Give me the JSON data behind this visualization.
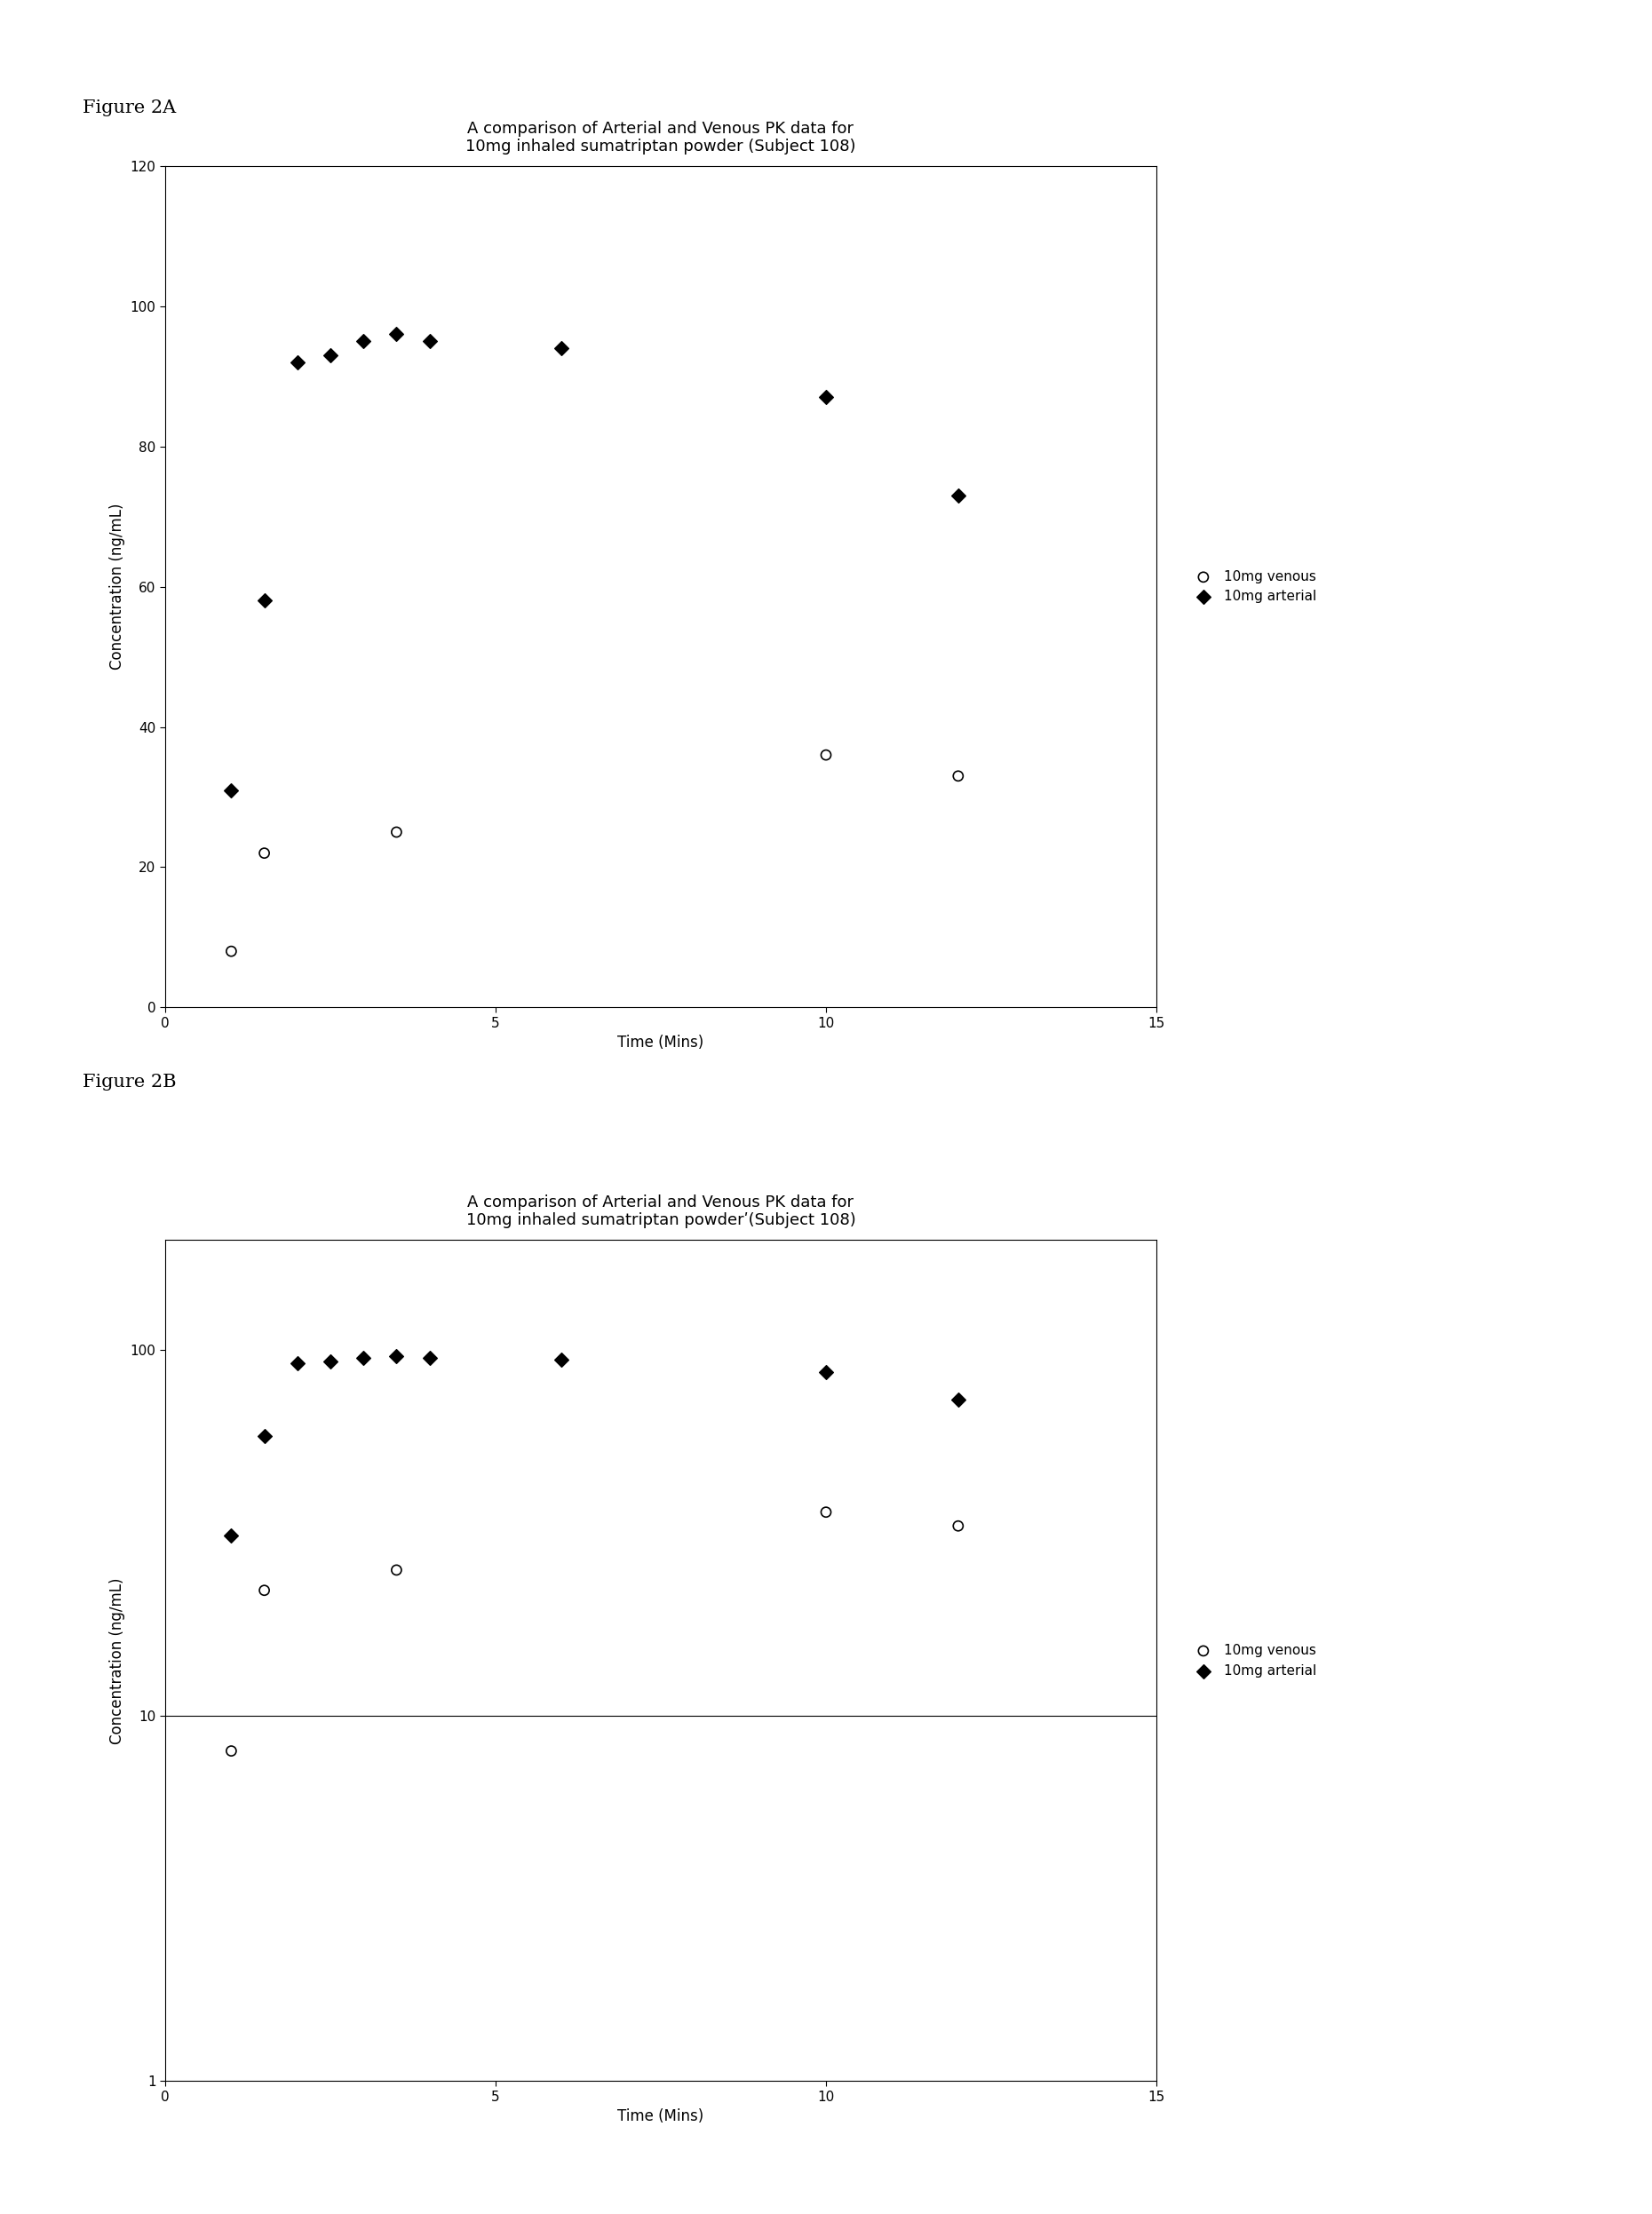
{
  "fig2a": {
    "title": "A comparison of Arterial and Venous PK data for\n10mg inhaled sumatriptan powder (Subject 108)",
    "venous_x": [
      1,
      1.5,
      3.5,
      10,
      12
    ],
    "venous_y": [
      8,
      22,
      25,
      36,
      33
    ],
    "arterial_x": [
      1,
      1.5,
      2,
      2.5,
      3,
      3.5,
      4,
      6,
      10,
      12
    ],
    "arterial_y": [
      31,
      58,
      92,
      93,
      95,
      96,
      95,
      94,
      87,
      73
    ],
    "xlabel": "Time (Mins)",
    "ylabel": "Concentration (ng/mL)",
    "xlim": [
      0,
      15
    ],
    "ylim": [
      0,
      120
    ],
    "yticks": [
      0,
      20,
      40,
      60,
      80,
      100,
      120
    ],
    "xticks": [
      0,
      5,
      10,
      15
    ],
    "legend_venous": "10mg venous",
    "legend_arterial": "10mg arterial",
    "figure_label": "Figure 2A"
  },
  "fig2b": {
    "title": "A comparison of Arterial and Venous PK data for\n10mg inhaled sumatriptan powderʹ(Subject 108)",
    "venous_x": [
      1,
      1.5,
      3.5,
      10,
      12
    ],
    "venous_y": [
      8,
      22,
      25,
      36,
      33
    ],
    "arterial_x": [
      1,
      1.5,
      2,
      2.5,
      3,
      3.5,
      4,
      6,
      10,
      12
    ],
    "arterial_y": [
      31,
      58,
      92,
      93,
      95,
      96,
      95,
      94,
      87,
      73
    ],
    "xlabel": "Time (Mins)",
    "ylabel": "Concentration (ng/mL)",
    "xlim": [
      0,
      15
    ],
    "ylim": [
      1,
      200
    ],
    "yticks": [
      1,
      10,
      100
    ],
    "xticks": [
      0,
      5,
      10,
      15
    ],
    "legend_venous": "10mg venous",
    "legend_arterial": "10mg arterial",
    "figure_label": "Figure 2B"
  },
  "background_color": "#ffffff",
  "marker_venous": "o",
  "marker_arterial": "D",
  "marker_color_venous": "#000000",
  "marker_color_arterial": "#000000",
  "marker_size": 8,
  "fontsize_title": 13,
  "fontsize_label": 12,
  "fontsize_tick": 11,
  "fontsize_legend": 11,
  "fontsize_figure_label": 15
}
